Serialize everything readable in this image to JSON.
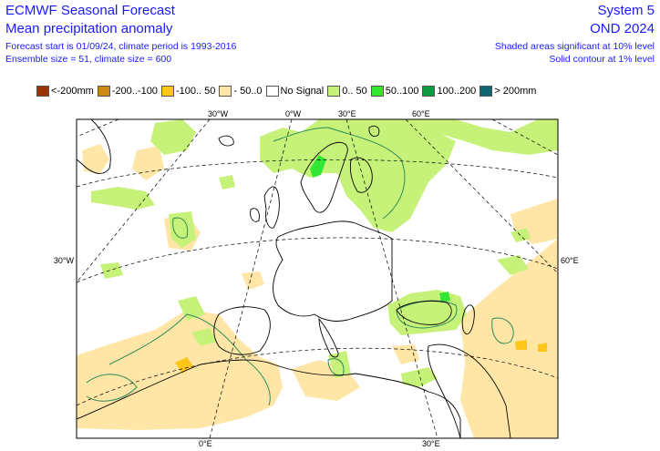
{
  "header": {
    "title": "ECMWF Seasonal Forecast",
    "subtitle": "Mean precipitation anomaly",
    "forecast_info": "Forecast start is 01/09/24, climate period is 1993-2016",
    "ensemble_info": "Ensemble size = 51, climate size = 600",
    "system": "System 5",
    "season": "OND 2024",
    "significance_note": "Shaded areas significant at 10% level",
    "contour_note": "Solid contour at 1% level"
  },
  "legend": [
    {
      "label": "<-200mm",
      "color": "#993300"
    },
    {
      "label": "-200..-100",
      "color": "#cc8a14"
    },
    {
      "label": "-100.. 50",
      "color": "#ffc61a"
    },
    {
      "label": "- 50..0",
      "color": "#ffe6a6"
    },
    {
      "label": "No Signal",
      "color": "#ffffff"
    },
    {
      "label": "0.. 50",
      "color": "#c6f27a"
    },
    {
      "label": "50..100",
      "color": "#33e633"
    },
    {
      "label": "100..200",
      "color": "#0f9940"
    },
    {
      "label": "> 200mm",
      "color": "#0f6670"
    }
  ],
  "map_labels": {
    "top": [
      "30°W",
      "0°W",
      "30°E",
      "60°E"
    ],
    "left": "30°W",
    "right": "60°E",
    "bottom": [
      "0°E",
      "30°E"
    ]
  },
  "colors": {
    "wet_light": "#c6f27a",
    "wet_mid": "#33e633",
    "dry_light": "#ffe6a6",
    "dry_mid": "#ffc61a",
    "contour": "#2e8b57"
  }
}
